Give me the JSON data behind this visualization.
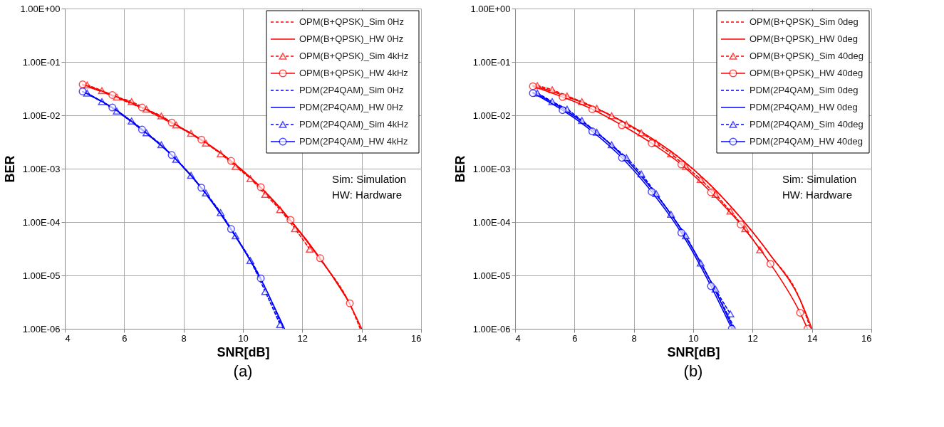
{
  "chart_data": [
    {
      "type": "line",
      "title": "(a)",
      "xlabel": "SNR[dB]",
      "ylabel": "BER",
      "log": "y",
      "grid": true,
      "legend": "top right",
      "xlim": [
        4,
        16
      ],
      "xticks": [
        4,
        6,
        8,
        10,
        12,
        14,
        16
      ],
      "ylim": [
        1e-06,
        1
      ],
      "yticks": [
        {
          "value": 1,
          "label": "1.00E+00"
        },
        {
          "value": 0.1,
          "label": "1.00E-01"
        },
        {
          "value": 0.01,
          "label": "1.00E-02"
        },
        {
          "value": 0.001,
          "label": "1.00E-03"
        },
        {
          "value": 0.0001,
          "label": "1.00E-04"
        },
        {
          "value": 1e-05,
          "label": "1.00E-05"
        },
        {
          "value": 1e-06,
          "label": "1.00E-06"
        }
      ],
      "annotations": [
        "Sim: Simulation",
        "HW: Hardware"
      ],
      "series": [
        {
          "name": "OPM(B+QPSK)_Sim 0Hz",
          "color": "#ff0000",
          "line_style": "dashed",
          "marker": "none",
          "x": [
            4.75,
            5.6,
            6.6,
            7.6,
            8.6,
            9.6,
            10.6,
            11.6,
            12.6,
            13.6,
            13.95
          ],
          "values": [
            0.036,
            0.023,
            0.0135,
            0.0071,
            0.0034,
            0.0014,
            0.00044,
            0.000105,
            2e-05,
            2.9e-06,
            1e-06
          ]
        },
        {
          "name": "OPM(B+QPSK)_HW 0Hz",
          "color": "#ff0000",
          "line_style": "solid",
          "marker": "none",
          "x": [
            4.6,
            5.6,
            6.6,
            7.6,
            8.6,
            9.6,
            10.6,
            11.6,
            12.6,
            13.6,
            14.0
          ],
          "values": [
            0.037,
            0.0235,
            0.0138,
            0.0072,
            0.0034,
            0.00138,
            0.00044,
            0.000108,
            2.05e-05,
            2.9e-06,
            1e-06
          ]
        },
        {
          "name": "OPM(B+QPSK)_Sim 4kHz",
          "color": "#ff0000",
          "line_style": "dashed",
          "marker": "triangle",
          "x": [
            4.75,
            5.25,
            5.75,
            6.25,
            6.75,
            7.25,
            7.75,
            8.25,
            8.75,
            9.25,
            9.75,
            10.25,
            10.75,
            11.25,
            11.75,
            12.25
          ],
          "values": [
            0.037,
            0.029,
            0.022,
            0.018,
            0.013,
            0.0097,
            0.0066,
            0.0046,
            0.003,
            0.0019,
            0.0011,
            0.00065,
            0.00033,
            0.00017,
            7.5e-05,
            3.1e-05
          ]
        },
        {
          "name": "OPM(B+QPSK)_HW 4kHz",
          "color": "#ff0000",
          "line_style": "solid",
          "marker": "circle",
          "x": [
            4.6,
            5.6,
            6.6,
            7.6,
            8.6,
            9.6,
            10.6,
            11.6,
            12.6,
            13.6
          ],
          "values": [
            0.038,
            0.024,
            0.014,
            0.0073,
            0.0035,
            0.0014,
            0.00045,
            0.00011,
            2.1e-05,
            3e-06
          ]
        },
        {
          "name": "PDM(2P4QAM)_Sim 0Hz",
          "color": "#0000ff",
          "line_style": "dashed",
          "marker": "none",
          "x": [
            4.75,
            5.6,
            6.6,
            7.6,
            8.6,
            9.6,
            10.6,
            11.35
          ],
          "values": [
            0.026,
            0.0135,
            0.0053,
            0.0018,
            0.00043,
            7.3e-05,
            8.8e-06,
            1e-06
          ]
        },
        {
          "name": "PDM(2P4QAM)_HW 0Hz",
          "color": "#0000ff",
          "line_style": "solid",
          "marker": "none",
          "x": [
            4.6,
            5.6,
            6.6,
            7.6,
            8.6,
            9.6,
            10.6,
            11.4
          ],
          "values": [
            0.0275,
            0.0138,
            0.0053,
            0.00178,
            0.00043,
            7.2e-05,
            8.5e-06,
            1e-06
          ]
        },
        {
          "name": "PDM(2P4QAM)_Sim 4kHz",
          "color": "#0000ff",
          "line_style": "dashed",
          "marker": "triangle",
          "x": [
            4.75,
            5.25,
            5.75,
            6.25,
            6.75,
            7.25,
            7.75,
            8.25,
            8.75,
            9.25,
            9.75,
            10.25,
            10.75,
            11.25
          ],
          "values": [
            0.026,
            0.018,
            0.012,
            0.0078,
            0.0047,
            0.0028,
            0.0015,
            0.00075,
            0.00035,
            0.00015,
            5.5e-05,
            1.9e-05,
            5e-06,
            1.2e-06
          ]
        },
        {
          "name": "PDM(2P4QAM)_HW 4kHz",
          "color": "#0000ff",
          "line_style": "solid",
          "marker": "circle",
          "x": [
            4.6,
            5.6,
            6.6,
            7.6,
            8.6,
            9.6,
            10.6
          ],
          "values": [
            0.028,
            0.014,
            0.0054,
            0.0018,
            0.00044,
            7.4e-05,
            8.8e-06
          ]
        }
      ]
    },
    {
      "type": "line",
      "title": "(b)",
      "xlabel": "SNR[dB]",
      "ylabel": "BER",
      "log": "y",
      "grid": true,
      "legend": "top right",
      "xlim": [
        4,
        16
      ],
      "xticks": [
        4,
        6,
        8,
        10,
        12,
        14,
        16
      ],
      "ylim": [
        1e-06,
        1
      ],
      "yticks": [
        {
          "value": 1,
          "label": "1.00E+00"
        },
        {
          "value": 0.1,
          "label": "1.00E-01"
        },
        {
          "value": 0.01,
          "label": "1.00E-02"
        },
        {
          "value": 0.001,
          "label": "1.00E-03"
        },
        {
          "value": 0.0001,
          "label": "1.00E-04"
        },
        {
          "value": 1e-05,
          "label": "1.00E-05"
        },
        {
          "value": 1e-06,
          "label": "1.00E-06"
        }
      ],
      "annotations": [
        "Sim: Simulation",
        "HW: Hardware"
      ],
      "series": [
        {
          "name": "OPM(B+QPSK)_Sim 0deg",
          "color": "#ff0000",
          "line_style": "dashed",
          "marker": "none",
          "x": [
            4.75,
            5.6,
            6.6,
            7.6,
            8.6,
            9.6,
            10.6,
            11.6,
            12.6,
            13.6,
            13.95
          ],
          "values": [
            0.035,
            0.024,
            0.0145,
            0.0078,
            0.0037,
            0.0015,
            0.00048,
            0.00012,
            2.4e-05,
            3.5e-06,
            1e-06
          ]
        },
        {
          "name": "OPM(B+QPSK)_HW 0deg",
          "color": "#ff0000",
          "line_style": "solid",
          "marker": "none",
          "x": [
            4.6,
            5.6,
            6.6,
            7.6,
            8.6,
            9.6,
            10.6,
            11.6,
            12.6,
            13.6,
            14.0
          ],
          "values": [
            0.036,
            0.024,
            0.0145,
            0.0078,
            0.0037,
            0.0015,
            0.00048,
            0.00012,
            2.4e-05,
            3.5e-06,
            1e-06
          ]
        },
        {
          "name": "OPM(B+QPSK)_Sim 40deg",
          "color": "#ff0000",
          "line_style": "dashed",
          "marker": "triangle",
          "x": [
            4.75,
            5.25,
            5.75,
            6.25,
            6.75,
            7.25,
            7.75,
            8.25,
            8.75,
            9.25,
            9.75,
            10.25,
            10.75,
            11.25,
            11.75,
            12.25
          ],
          "values": [
            0.036,
            0.03,
            0.023,
            0.018,
            0.0135,
            0.0098,
            0.0068,
            0.0047,
            0.003,
            0.0019,
            0.0011,
            0.00063,
            0.00033,
            0.00016,
            7.5e-05,
            3e-05
          ]
        },
        {
          "name": "OPM(B+QPSK)_HW 40deg",
          "color": "#ff0000",
          "line_style": "solid",
          "marker": "circle",
          "x": [
            4.6,
            5.6,
            6.6,
            7.6,
            8.6,
            9.6,
            10.6,
            11.6,
            12.6,
            13.6,
            13.85
          ],
          "values": [
            0.035,
            0.022,
            0.013,
            0.0065,
            0.003,
            0.0012,
            0.00036,
            9e-05,
            1.65e-05,
            2e-06,
            1e-06
          ]
        },
        {
          "name": "PDM(2P4QAM)_Sim 0deg",
          "color": "#0000ff",
          "line_style": "dashed",
          "marker": "none",
          "x": [
            4.75,
            5.6,
            6.6,
            7.6,
            8.6,
            9.6,
            10.6,
            11.4
          ],
          "values": [
            0.026,
            0.0135,
            0.0055,
            0.0018,
            0.00042,
            7.2e-05,
            7.5e-06,
            1e-06
          ]
        },
        {
          "name": "PDM(2P4QAM)_HW 0deg",
          "color": "#0000ff",
          "line_style": "solid",
          "marker": "none",
          "x": [
            4.6,
            5.6,
            6.6,
            7.6,
            8.6,
            9.6,
            10.6,
            11.35
          ],
          "values": [
            0.027,
            0.0135,
            0.0055,
            0.0018,
            0.00042,
            7.2e-05,
            7.5e-06,
            1e-06
          ]
        },
        {
          "name": "PDM(2P4QAM)_Sim 40deg",
          "color": "#0000ff",
          "line_style": "dashed",
          "marker": "triangle",
          "x": [
            4.75,
            5.25,
            5.75,
            6.25,
            6.75,
            7.25,
            7.75,
            8.25,
            8.75,
            9.25,
            9.75,
            10.25,
            10.75,
            11.25
          ],
          "values": [
            0.026,
            0.018,
            0.013,
            0.008,
            0.0048,
            0.0028,
            0.0016,
            0.0008,
            0.00034,
            0.00014,
            5.5e-05,
            1.7e-05,
            5.5e-06,
            1.9e-06
          ]
        },
        {
          "name": "PDM(2P4QAM)_HW 40deg",
          "color": "#0000ff",
          "line_style": "solid",
          "marker": "circle",
          "x": [
            4.6,
            5.6,
            6.6,
            7.6,
            8.6,
            9.6,
            10.6,
            11.3
          ],
          "values": [
            0.026,
            0.0125,
            0.005,
            0.0016,
            0.00037,
            6.3e-05,
            6.3e-06,
            1e-06
          ]
        }
      ]
    }
  ]
}
